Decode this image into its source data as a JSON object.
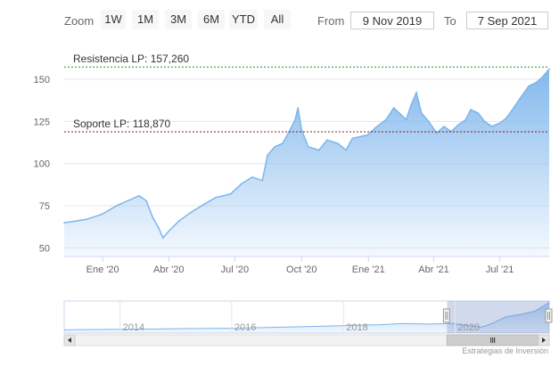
{
  "toolbar": {
    "zoom_label": "Zoom",
    "zoom_buttons": [
      "1W",
      "1M",
      "3M",
      "6M",
      "YTD",
      "All"
    ],
    "from_label": "From",
    "from_value": "9 Nov 2019",
    "to_label": "To",
    "to_value": "7 Sep 2021"
  },
  "credits": "Estrategias de Inversión",
  "chart_data": {
    "type": "area",
    "title": "",
    "xlabel": "",
    "ylabel": "",
    "x_ticks": [
      "Ene '20",
      "Abr '20",
      "Jul '20",
      "Oct '20",
      "Ene '21",
      "Abr '21",
      "Jul '21"
    ],
    "y_ticks": [
      50,
      75,
      100,
      125,
      150
    ],
    "ylim": [
      45,
      160
    ],
    "xlim": [
      "2019-11-09",
      "2021-09-07"
    ],
    "grid": true,
    "series": [
      {
        "name": "",
        "color": "#7cb5ec",
        "points": [
          [
            "2019-11-09",
            65
          ],
          [
            "2019-11-25",
            66
          ],
          [
            "2019-12-10",
            67
          ],
          [
            "2019-12-31",
            70
          ],
          [
            "2020-01-20",
            75
          ],
          [
            "2020-02-10",
            79
          ],
          [
            "2020-02-20",
            81
          ],
          [
            "2020-03-01",
            78
          ],
          [
            "2020-03-10",
            68
          ],
          [
            "2020-03-18",
            62
          ],
          [
            "2020-03-24",
            56
          ],
          [
            "2020-04-01",
            60
          ],
          [
            "2020-04-15",
            66
          ],
          [
            "2020-05-01",
            71
          ],
          [
            "2020-05-20",
            76
          ],
          [
            "2020-06-05",
            80
          ],
          [
            "2020-06-25",
            82
          ],
          [
            "2020-07-10",
            88
          ],
          [
            "2020-07-25",
            92
          ],
          [
            "2020-08-08",
            90
          ],
          [
            "2020-08-15",
            105
          ],
          [
            "2020-08-25",
            110
          ],
          [
            "2020-09-05",
            112
          ],
          [
            "2020-09-15",
            120
          ],
          [
            "2020-09-22",
            126
          ],
          [
            "2020-09-26",
            133
          ],
          [
            "2020-10-01",
            120
          ],
          [
            "2020-10-10",
            110
          ],
          [
            "2020-10-25",
            108
          ],
          [
            "2020-11-05",
            114
          ],
          [
            "2020-11-20",
            112
          ],
          [
            "2020-12-01",
            108
          ],
          [
            "2020-12-10",
            115
          ],
          [
            "2020-12-31",
            117
          ],
          [
            "2021-01-10",
            121
          ],
          [
            "2021-01-25",
            126
          ],
          [
            "2021-02-05",
            133
          ],
          [
            "2021-02-15",
            129
          ],
          [
            "2021-02-22",
            126
          ],
          [
            "2021-03-01",
            135
          ],
          [
            "2021-03-08",
            142
          ],
          [
            "2021-03-15",
            130
          ],
          [
            "2021-03-25",
            125
          ],
          [
            "2021-04-05",
            118
          ],
          [
            "2021-04-15",
            122
          ],
          [
            "2021-04-25",
            119
          ],
          [
            "2021-05-05",
            123
          ],
          [
            "2021-05-15",
            126
          ],
          [
            "2021-05-22",
            132
          ],
          [
            "2021-06-01",
            130
          ],
          [
            "2021-06-10",
            125
          ],
          [
            "2021-06-20",
            122
          ],
          [
            "2021-07-01",
            124
          ],
          [
            "2021-07-10",
            127
          ],
          [
            "2021-07-20",
            133
          ],
          [
            "2021-07-31",
            140
          ],
          [
            "2021-08-10",
            146
          ],
          [
            "2021-08-20",
            148
          ],
          [
            "2021-08-28",
            151
          ],
          [
            "2021-09-07",
            156
          ]
        ]
      }
    ],
    "plot_lines": [
      {
        "label": "Resistencia LP: 157,260",
        "value": 157.26,
        "color": "#2e8b2e"
      },
      {
        "label": "Soporte LP: 118,870",
        "value": 118.87,
        "color": "#8b1a1a"
      }
    ],
    "navigator": {
      "x_labels": [
        "2014",
        "2016",
        "2018",
        "2020"
      ],
      "xlim": [
        "2013-01-01",
        "2021-09-07"
      ],
      "selected_range": [
        "2019-11-09",
        "2021-09-07"
      ]
    }
  }
}
